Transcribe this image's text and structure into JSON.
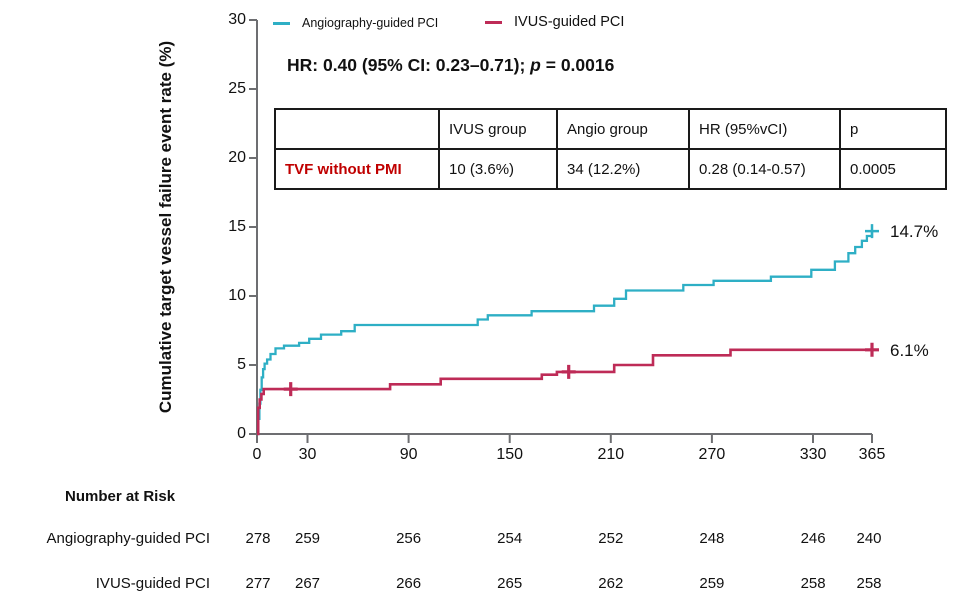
{
  "legend": {
    "item1": "Angiography-guided PCI",
    "item2": "IVUS-guided PCI"
  },
  "hr_line": {
    "prefix": "HR: 0.40 (95% CI: 0.23–0.71); ",
    "p_symbol": "p",
    "suffix": " = 0.0016"
  },
  "stats_table": {
    "headers": [
      "",
      "IVUS group",
      "Angio group",
      "HR (95%vCI)",
      "p"
    ],
    "row": {
      "label": "TVF without PMI",
      "label_color": "#C00000",
      "values": [
        "10 (3.6%)",
        "34 (12.2%)",
        "0.28 (0.14-0.57)",
        "0.0005"
      ]
    }
  },
  "number_at_risk": {
    "title": "Number at Risk",
    "rows": [
      {
        "label": "Angiography-guided PCI",
        "values": [
          278,
          259,
          256,
          254,
          252,
          248,
          246,
          240
        ]
      },
      {
        "label": "IVUS-guided PCI",
        "values": [
          277,
          267,
          266,
          265,
          262,
          259,
          258,
          258
        ]
      }
    ]
  },
  "chart_data": {
    "type": "line",
    "subtype": "kaplan-meier-step",
    "title": "",
    "xlabel": "",
    "ylabel": "Cumulative target vessel failure event rate (%)",
    "xlim": [
      0,
      365
    ],
    "ylim": [
      0,
      30
    ],
    "xticks": [
      0,
      30,
      90,
      150,
      210,
      270,
      330,
      365
    ],
    "yticks": [
      0,
      5,
      10,
      15,
      20,
      25,
      30
    ],
    "grid": false,
    "legend_position": "top",
    "axis_color": "#6D6E71",
    "series": [
      {
        "name": "Angiography-guided PCI",
        "color": "#2EAFC5",
        "end_label": "14.7%",
        "stroke_width": 2.3,
        "censor_stroke": 2.5,
        "steps": [
          [
            0,
            0
          ],
          [
            0.8,
            1.1
          ],
          [
            1.4,
            2.2
          ],
          [
            2,
            3.2
          ],
          [
            2.8,
            4.1
          ],
          [
            3.6,
            4.7
          ],
          [
            4.5,
            5.1
          ],
          [
            6,
            5.4
          ],
          [
            8,
            5.8
          ],
          [
            11,
            6.2
          ],
          [
            16,
            6.4
          ],
          [
            25,
            6.6
          ],
          [
            31,
            6.9
          ],
          [
            38,
            7.2
          ],
          [
            50,
            7.45
          ],
          [
            58,
            7.9
          ],
          [
            131,
            8.3
          ],
          [
            137,
            8.6
          ],
          [
            163,
            8.9
          ],
          [
            200,
            9.3
          ],
          [
            212,
            9.8
          ],
          [
            219,
            10.4
          ],
          [
            253,
            10.8
          ],
          [
            271,
            11.1
          ],
          [
            305,
            11.4
          ],
          [
            329,
            11.9
          ],
          [
            343,
            12.5
          ],
          [
            351,
            13.1
          ],
          [
            355,
            13.55
          ],
          [
            359,
            14.0
          ],
          [
            362,
            14.35
          ],
          [
            365,
            14.7
          ]
        ],
        "censors": [
          [
            365,
            14.7
          ]
        ]
      },
      {
        "name": "IVUS-guided PCI",
        "color": "#BE2B57",
        "end_label": "6.1%",
        "stroke_width": 2.6,
        "censor_stroke": 3.2,
        "steps": [
          [
            0,
            0
          ],
          [
            0.7,
            1.9
          ],
          [
            1.6,
            2.5
          ],
          [
            2.6,
            2.9
          ],
          [
            4,
            3.25
          ],
          [
            79,
            3.6
          ],
          [
            109,
            4.0
          ],
          [
            169,
            4.3
          ],
          [
            178,
            4.5
          ],
          [
            212,
            5.0
          ],
          [
            235,
            5.7
          ],
          [
            281,
            6.1
          ],
          [
            365,
            6.1
          ]
        ],
        "censors": [
          [
            20,
            3.25
          ],
          [
            185,
            4.5
          ],
          [
            365,
            6.1
          ]
        ]
      }
    ]
  }
}
